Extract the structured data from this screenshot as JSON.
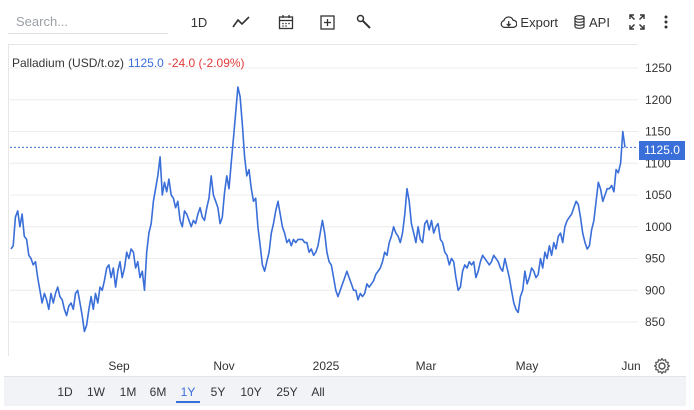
{
  "toolbar": {
    "search_placeholder": "Search...",
    "period_label": "1D",
    "export_label": "Export",
    "api_label": "API",
    "icons": [
      "line-chart-icon",
      "calendar-icon",
      "add-icon",
      "wrench-icon",
      "cloud-download-icon",
      "database-icon",
      "fullscreen-icon",
      "more-vert-icon"
    ]
  },
  "legend": {
    "name": "Palladium (USD/t.oz)",
    "value": "1125.0",
    "change": "-24.0 (-2.09%)",
    "value_color": "#3a6ed8",
    "change_color": "#e03a3a"
  },
  "price_tag": "1125.0",
  "range_buttons": [
    "1D",
    "1W",
    "1M",
    "6M",
    "1Y",
    "5Y",
    "10Y",
    "25Y",
    "All"
  ],
  "active_range": "1Y",
  "chart_data": {
    "type": "line",
    "ylim": [
      800,
      1280
    ],
    "yticks": [
      "1250",
      "1200",
      "1150",
      "1100",
      "1050",
      "1000",
      "950",
      "900",
      "850"
    ],
    "xticks": [
      "Sep",
      "Nov",
      "2025",
      "Mar",
      "May",
      "Jun"
    ],
    "current_value": 1125.0,
    "line_color": "#3a6ed8",
    "grid": "horizontal",
    "series": [
      {
        "values": [
          965,
          970,
          1015,
          1025,
          1000,
          1020,
          985,
          980,
          955,
          950,
          940,
          945,
          920,
          900,
          880,
          895,
          885,
          870,
          895,
          880,
          895,
          905,
          890,
          885,
          870,
          860,
          875,
          880,
          870,
          895,
          900,
          880,
          860,
          835,
          845,
          870,
          890,
          870,
          895,
          880,
          905,
          900,
          915,
          935,
          940,
          920,
          935,
          905,
          930,
          945,
          920,
          935,
          960,
          950,
          965,
          960,
          935,
          945,
          920,
          930,
          900,
          960,
          990,
          1005,
          1040,
          1060,
          1080,
          1110,
          1050,
          1070,
          1055,
          1075,
          1050,
          1045,
          1030,
          1040,
          1010,
          1000,
          1025,
          1020,
          1010,
          1000,
          1010,
          1005,
          1020,
          1030,
          1015,
          1010,
          1030,
          1045,
          1080,
          1050,
          1040,
          1030,
          1005,
          1015,
          1055,
          1080,
          1060,
          1100,
          1140,
          1180,
          1220,
          1205,
          1160,
          1110,
          1080,
          1090,
          1060,
          1040,
          1045,
          1000,
          970,
          940,
          930,
          945,
          960,
          990,
          1005,
          1025,
          1040,
          1020,
          1000,
          990,
          975,
          980,
          970,
          980,
          975,
          980,
          980,
          980,
          975,
          975,
          960,
          965,
          955,
          960,
          970,
          990,
          1010,
          990,
          960,
          945,
          940,
          920,
          900,
          890,
          900,
          910,
          920,
          930,
          920,
          910,
          900,
          900,
          885,
          895,
          890,
          895,
          910,
          905,
          910,
          915,
          925,
          930,
          935,
          945,
          960,
          955,
          975,
          985,
          1000,
          990,
          985,
          975,
          990,
          1020,
          1060,
          1040,
          1005,
          990,
          975,
          1000,
          980,
          975,
          1005,
          1010,
          995,
          1010,
          990,
          1000,
          1005,
          980,
          975,
          960,
          955,
          940,
          950,
          945,
          920,
          900,
          905,
          930,
          940,
          935,
          945,
          940,
          945,
          920,
          930,
          945,
          955,
          950,
          945,
          940,
          945,
          955,
          950,
          945,
          935,
          930,
          950,
          935,
          920,
          900,
          880,
          870,
          865,
          890,
          900,
          930,
          910,
          920,
          935,
          930,
          920,
          925,
          950,
          935,
          960,
          950,
          970,
          955,
          975,
          965,
          985,
          990,
          975,
          1000,
          1010,
          1015,
          1020,
          1030,
          1040,
          1035,
          1015,
          990,
          975,
          965,
          970,
          995,
          1010,
          1040,
          1070,
          1060,
          1040,
          1050,
          1060,
          1060,
          1065,
          1055,
          1090,
          1085,
          1100,
          1150,
          1125
        ]
      }
    ]
  }
}
